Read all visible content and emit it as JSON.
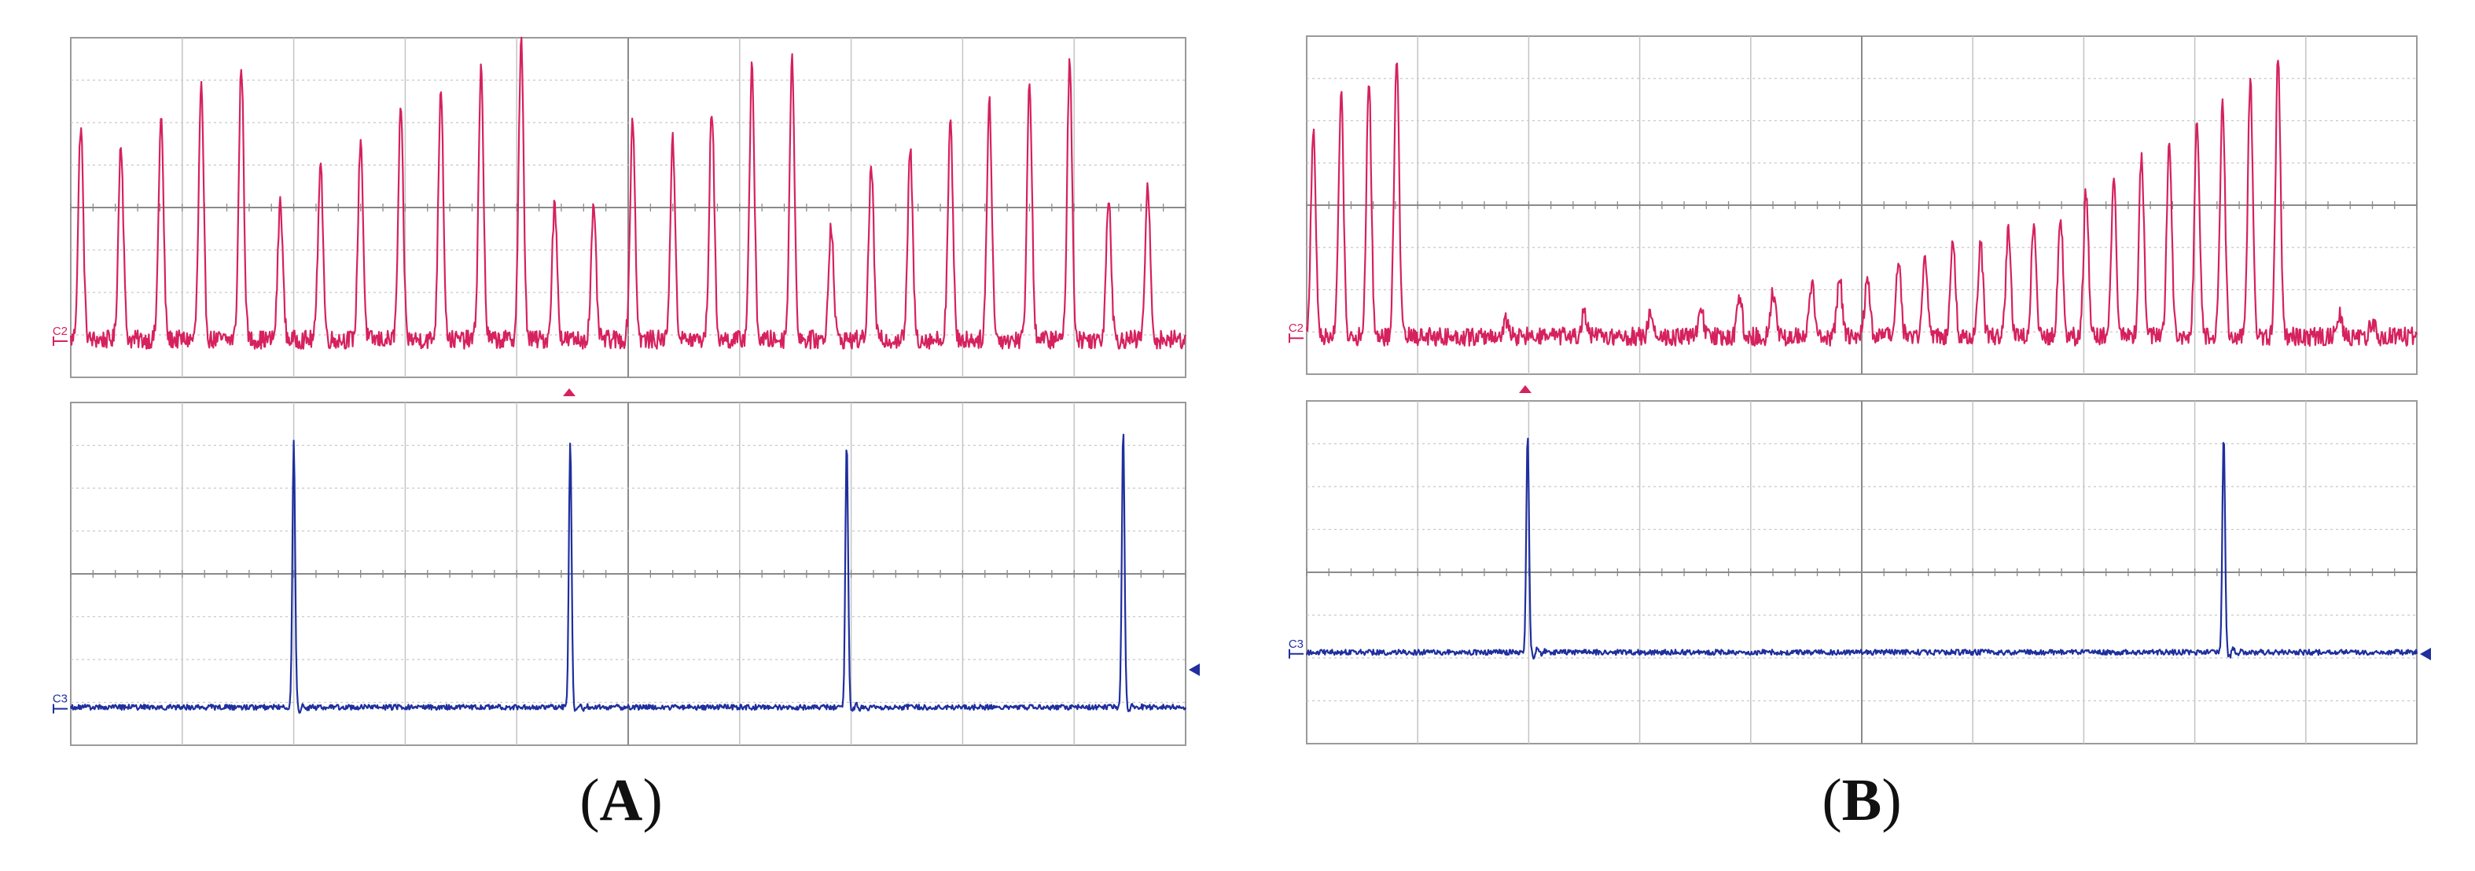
{
  "chart_data": [
    {
      "type": "line",
      "panel_label": "A",
      "traces": [
        {
          "channel": "C2",
          "color": "#d6215f",
          "baseline": 0.1,
          "peaks": [
            {
              "t": 0.009,
              "v": 0.75
            },
            {
              "t": 0.045,
              "v": 0.7
            },
            {
              "t": 0.081,
              "v": 0.77
            },
            {
              "t": 0.117,
              "v": 0.86
            },
            {
              "t": 0.153,
              "v": 0.93
            },
            {
              "t": 0.188,
              "v": 0.52
            },
            {
              "t": 0.224,
              "v": 0.64
            },
            {
              "t": 0.26,
              "v": 0.71
            },
            {
              "t": 0.296,
              "v": 0.79
            },
            {
              "t": 0.332,
              "v": 0.87
            },
            {
              "t": 0.368,
              "v": 0.92
            },
            {
              "t": 0.404,
              "v": 1.0
            },
            {
              "t": 0.434,
              "v": 0.51
            },
            {
              "t": 0.469,
              "v": 0.49
            },
            {
              "t": 0.504,
              "v": 0.77
            },
            {
              "t": 0.54,
              "v": 0.7
            },
            {
              "t": 0.575,
              "v": 0.8
            },
            {
              "t": 0.611,
              "v": 0.92
            },
            {
              "t": 0.647,
              "v": 0.94
            },
            {
              "t": 0.682,
              "v": 0.45
            },
            {
              "t": 0.718,
              "v": 0.63
            },
            {
              "t": 0.753,
              "v": 0.67
            },
            {
              "t": 0.789,
              "v": 0.76
            },
            {
              "t": 0.824,
              "v": 0.82
            },
            {
              "t": 0.86,
              "v": 0.88
            },
            {
              "t": 0.896,
              "v": 0.94
            },
            {
              "t": 0.931,
              "v": 0.54
            },
            {
              "t": 0.966,
              "v": 0.56
            }
          ]
        },
        {
          "channel": "C3",
          "color": "#1f2f9e",
          "baseline": 0.1,
          "peaks": [
            {
              "t": 0.2,
              "v": 0.9
            },
            {
              "t": 0.448,
              "v": 0.89
            },
            {
              "t": 0.696,
              "v": 0.9
            },
            {
              "t": 0.944,
              "v": 0.93
            }
          ]
        }
      ]
    },
    {
      "type": "line",
      "panel_label": "B",
      "traces": [
        {
          "channel": "C2",
          "color": "#d6215f",
          "baseline": 0.1,
          "peaks": [
            {
              "t": 0.006,
              "v": 0.72
            },
            {
              "t": 0.031,
              "v": 0.84
            },
            {
              "t": 0.056,
              "v": 0.88
            },
            {
              "t": 0.081,
              "v": 0.96
            },
            {
              "t": 0.18,
              "v": 0.15
            },
            {
              "t": 0.25,
              "v": 0.17
            },
            {
              "t": 0.31,
              "v": 0.18
            },
            {
              "t": 0.355,
              "v": 0.2
            },
            {
              "t": 0.39,
              "v": 0.22
            },
            {
              "t": 0.42,
              "v": 0.24
            },
            {
              "t": 0.455,
              "v": 0.26
            },
            {
              "t": 0.48,
              "v": 0.28
            },
            {
              "t": 0.505,
              "v": 0.29
            },
            {
              "t": 0.533,
              "v": 0.33
            },
            {
              "t": 0.557,
              "v": 0.35
            },
            {
              "t": 0.582,
              "v": 0.41
            },
            {
              "t": 0.607,
              "v": 0.39
            },
            {
              "t": 0.632,
              "v": 0.42
            },
            {
              "t": 0.655,
              "v": 0.45
            },
            {
              "t": 0.679,
              "v": 0.47
            },
            {
              "t": 0.702,
              "v": 0.54
            },
            {
              "t": 0.727,
              "v": 0.58
            },
            {
              "t": 0.752,
              "v": 0.66
            },
            {
              "t": 0.777,
              "v": 0.71
            },
            {
              "t": 0.802,
              "v": 0.77
            },
            {
              "t": 0.825,
              "v": 0.83
            },
            {
              "t": 0.85,
              "v": 0.88
            },
            {
              "t": 0.875,
              "v": 0.96
            },
            {
              "t": 0.93,
              "v": 0.17
            },
            {
              "t": 0.96,
              "v": 0.15
            }
          ]
        },
        {
          "channel": "C3",
          "color": "#1f2f9e",
          "baseline": 0.26,
          "peaks": [
            {
              "t": 0.199,
              "v": 0.91
            },
            {
              "t": 0.826,
              "v": 0.91
            }
          ]
        }
      ]
    }
  ]
}
